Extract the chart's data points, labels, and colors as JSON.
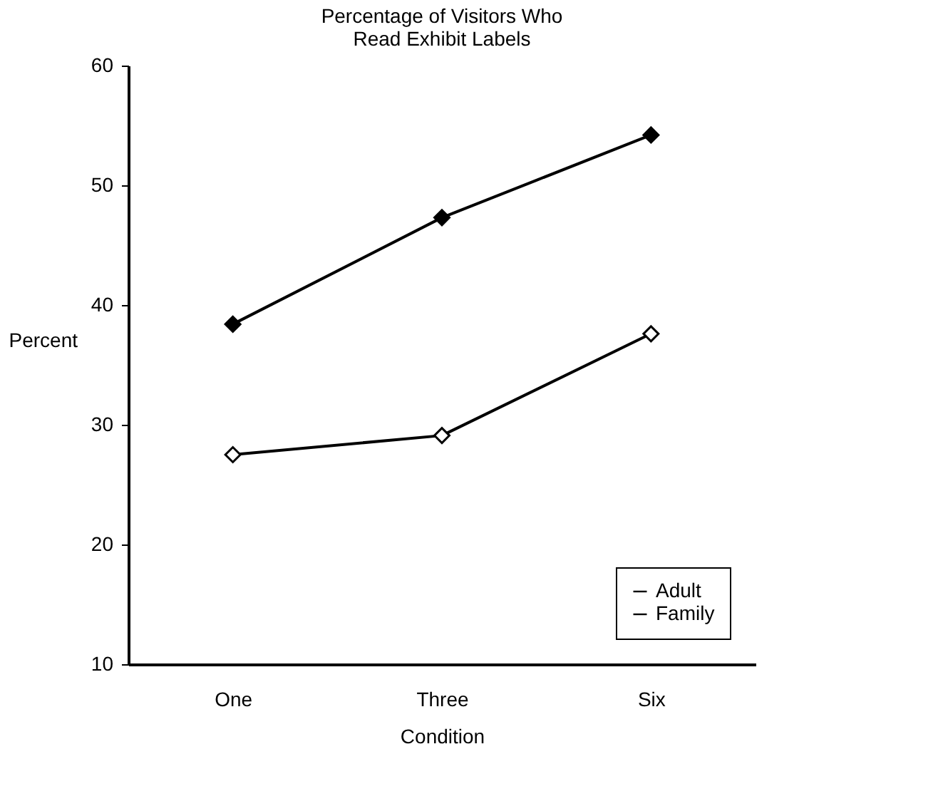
{
  "chart_data": {
    "type": "line",
    "title": [
      "Percentage of Visitors Who",
      "Read Exhibit Labels"
    ],
    "xlabel": "Condition",
    "ylabel": "Percent",
    "categories": [
      "One",
      "Three",
      "Six"
    ],
    "series": [
      {
        "name": "Adult",
        "color": "#000000",
        "values": [
          38.4,
          47.3,
          54.2
        ]
      },
      {
        "name": "Family",
        "color": "#000000",
        "values": [
          27.5,
          29.1,
          37.6
        ]
      }
    ],
    "ylim": [
      10,
      60
    ],
    "yticks": [
      10,
      20,
      30,
      40,
      50,
      60
    ],
    "grid": false,
    "legend": "bottom right",
    "marker": "diamond",
    "line_style": "solid"
  }
}
